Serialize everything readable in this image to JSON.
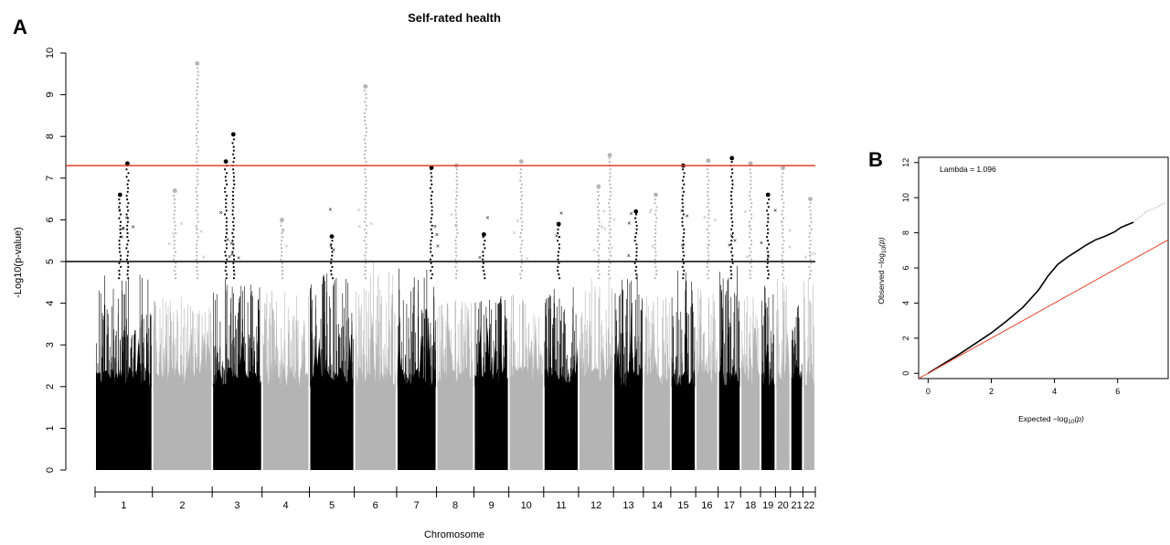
{
  "panel_a": {
    "letter": "A"
  },
  "panel_b": {
    "letter": "B"
  },
  "chart_data": [
    {
      "type": "scatter",
      "title": "Self-rated health",
      "xlabel": "Chromosome",
      "ylabel": "-Log10(p-value)",
      "ylim": [
        0,
        10
      ],
      "yticks": [
        0,
        1,
        2,
        3,
        4,
        5,
        6,
        7,
        8,
        9,
        10
      ],
      "grid": false,
      "colors": {
        "odd_chromosomes": "#000000",
        "even_chromosomes": "#b4b4b4",
        "significance_line": "#e8402a",
        "suggestive_line": "#000000"
      },
      "reference_lines": {
        "genome_wide_significance": 7.3,
        "suggestive": 5.0
      },
      "chromosomes": [
        {
          "label": "1",
          "extent": [
            0.0,
            0.23
          ]
        },
        {
          "label": "2",
          "extent": [
            0.23,
            0.47
          ]
        },
        {
          "label": "3",
          "extent": [
            0.47,
            0.67
          ]
        },
        {
          "label": "4",
          "extent": [
            0.67,
            0.86
          ]
        },
        {
          "label": "5",
          "extent": [
            0.86,
            1.04
          ]
        },
        {
          "label": "6",
          "extent": [
            1.04,
            1.21
          ]
        },
        {
          "label": "7",
          "extent": [
            1.21,
            1.37
          ]
        },
        {
          "label": "8",
          "extent": [
            1.37,
            1.52
          ]
        },
        {
          "label": "9",
          "extent": [
            1.52,
            1.66
          ]
        },
        {
          "label": "10",
          "extent": [
            1.66,
            1.8
          ]
        },
        {
          "label": "11",
          "extent": [
            1.8,
            1.94
          ]
        },
        {
          "label": "12",
          "extent": [
            1.94,
            2.08
          ]
        },
        {
          "label": "13",
          "extent": [
            2.08,
            2.2
          ]
        },
        {
          "label": "14",
          "extent": [
            2.2,
            2.31
          ]
        },
        {
          "label": "15",
          "extent": [
            2.31,
            2.41
          ]
        },
        {
          "label": "16",
          "extent": [
            2.41,
            2.5
          ]
        },
        {
          "label": "17",
          "extent": [
            2.5,
            2.59
          ]
        },
        {
          "label": "18",
          "extent": [
            2.59,
            2.67
          ]
        },
        {
          "label": "19",
          "extent": [
            2.67,
            2.73
          ]
        },
        {
          "label": "20",
          "extent": [
            2.73,
            2.79
          ]
        },
        {
          "label": "21",
          "extent": [
            2.79,
            2.84
          ]
        },
        {
          "label": "22",
          "extent": [
            2.84,
            2.89
          ]
        }
      ],
      "chromosome_max_background": [
        4.7,
        4.2,
        4.6,
        4.3,
        4.8,
        5.0,
        4.9,
        4.1,
        4.2,
        4.3,
        4.4,
        4.6,
        4.7,
        4.3,
        4.8,
        4.5,
        4.9,
        4.4,
        4.5,
        4.6,
        4.2,
        4.8
      ],
      "peaks": [
        {
          "chromosome": "1",
          "position": 0.13,
          "minus_log10_p": 7.35
        },
        {
          "chromosome": "1",
          "position": 0.1,
          "minus_log10_p": 6.6
        },
        {
          "chromosome": "2",
          "position": 0.32,
          "minus_log10_p": 6.7
        },
        {
          "chromosome": "2",
          "position": 0.41,
          "minus_log10_p": 9.75
        },
        {
          "chromosome": "3",
          "position": 0.525,
          "minus_log10_p": 7.4
        },
        {
          "chromosome": "3",
          "position": 0.555,
          "minus_log10_p": 8.05
        },
        {
          "chromosome": "4",
          "position": 0.75,
          "minus_log10_p": 6.0
        },
        {
          "chromosome": "5",
          "position": 0.95,
          "minus_log10_p": 5.6
        },
        {
          "chromosome": "6",
          "position": 1.085,
          "minus_log10_p": 9.2
        },
        {
          "chromosome": "7",
          "position": 1.35,
          "minus_log10_p": 7.25
        },
        {
          "chromosome": "8",
          "position": 1.45,
          "minus_log10_p": 7.3
        },
        {
          "chromosome": "9",
          "position": 1.56,
          "minus_log10_p": 5.65
        },
        {
          "chromosome": "10",
          "position": 1.71,
          "minus_log10_p": 7.4
        },
        {
          "chromosome": "11",
          "position": 1.86,
          "minus_log10_p": 5.9
        },
        {
          "chromosome": "12",
          "position": 2.02,
          "minus_log10_p": 6.8
        },
        {
          "chromosome": "12",
          "position": 2.065,
          "minus_log10_p": 7.55
        },
        {
          "chromosome": "13",
          "position": 2.17,
          "minus_log10_p": 6.2
        },
        {
          "chromosome": "14",
          "position": 2.25,
          "minus_log10_p": 6.6
        },
        {
          "chromosome": "15",
          "position": 2.36,
          "minus_log10_p": 7.3
        },
        {
          "chromosome": "16",
          "position": 2.46,
          "minus_log10_p": 7.42
        },
        {
          "chromosome": "17",
          "position": 2.555,
          "minus_log10_p": 7.48
        },
        {
          "chromosome": "18",
          "position": 2.63,
          "minus_log10_p": 7.35
        },
        {
          "chromosome": "19",
          "position": 2.7,
          "minus_log10_p": 6.6
        },
        {
          "chromosome": "20",
          "position": 2.76,
          "minus_log10_p": 7.25
        },
        {
          "chromosome": "22",
          "position": 2.87,
          "minus_log10_p": 6.5
        }
      ]
    },
    {
      "type": "line",
      "xlabel": "Expected −log",
      "xlabel_sub": "10",
      "xlabel_end": "(p)",
      "ylabel": "Observed −log",
      "ylabel_sub": "10",
      "ylabel_end": "(p)",
      "annotation": "Lambda = 1.096",
      "xlim": [
        -0.3,
        7.6
      ],
      "ylim": [
        -0.3,
        12.3
      ],
      "xticks": [
        0,
        2,
        4,
        6
      ],
      "yticks": [
        0,
        2,
        4,
        6,
        8,
        10,
        12
      ],
      "series": [
        {
          "color": "#000000",
          "x": [
            0,
            0.5,
            1.0,
            1.5,
            2.0,
            2.5,
            3.0,
            3.5,
            3.8,
            4.1,
            4.4,
            4.7,
            5.0,
            5.3,
            5.6,
            5.9,
            6.1,
            6.3,
            6.5
          ],
          "y": [
            0,
            0.55,
            1.1,
            1.7,
            2.3,
            3.0,
            3.75,
            4.75,
            5.55,
            6.2,
            6.6,
            6.95,
            7.3,
            7.6,
            7.8,
            8.05,
            8.3,
            8.45,
            8.6
          ]
        },
        {
          "color": "#b4b4b4",
          "x": [
            6.5,
            6.7,
            6.9,
            7.1,
            7.3,
            7.5
          ],
          "y": [
            8.6,
            8.9,
            9.2,
            9.35,
            9.5,
            9.7
          ]
        },
        {
          "color": "#e8402a",
          "x": [
            -0.3,
            7.6
          ],
          "y": [
            -0.3,
            7.6
          ]
        }
      ]
    }
  ]
}
